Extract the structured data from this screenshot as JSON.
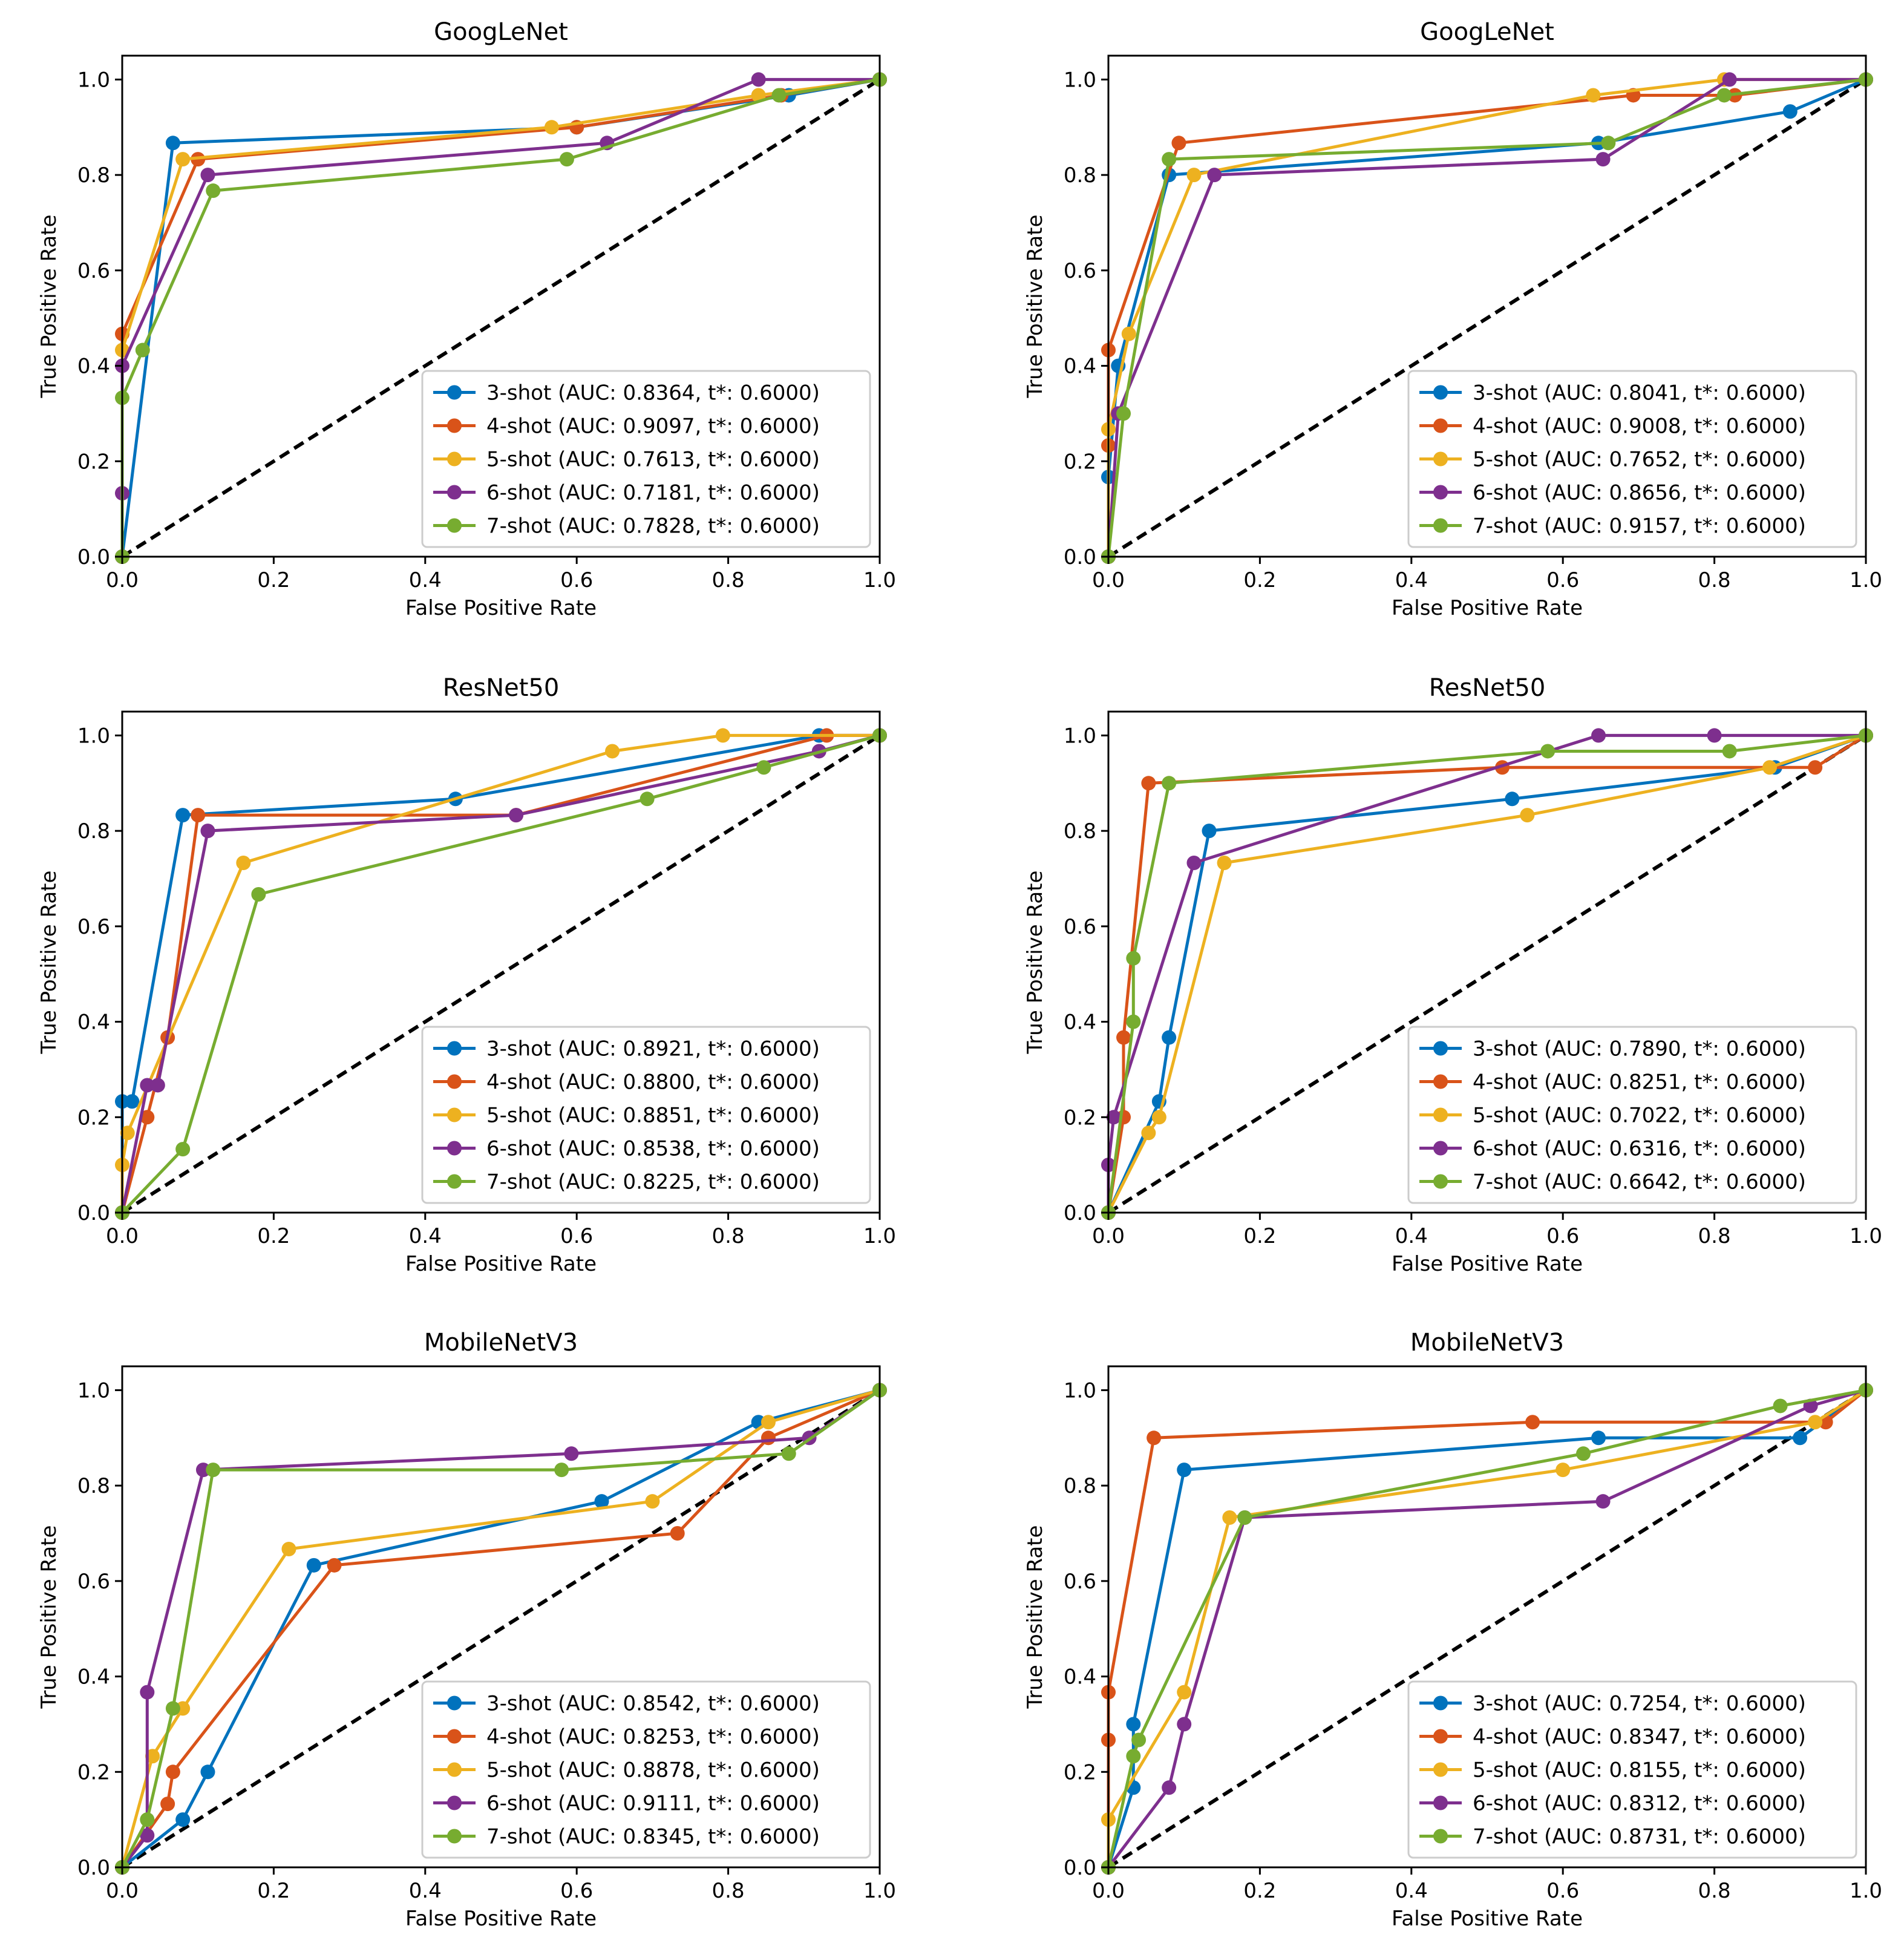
{
  "colors": {
    "3-shot": "#0072BD",
    "4-shot": "#D95319",
    "5-shot": "#EDB120",
    "6-shot": "#7E2F8E",
    "7-shot": "#77AC30",
    "diagonal": "#000000"
  },
  "chart_data": [
    {
      "type": "line",
      "title": "GoogLeNet",
      "xlabel": "False Positive Rate",
      "ylabel": "True Positive Rate",
      "xlim": [
        0,
        1
      ],
      "ylim": [
        0,
        1.05
      ],
      "xticks": [
        "0.0",
        "0.2",
        "0.4",
        "0.6",
        "0.8",
        "1.0"
      ],
      "yticks": [
        "0.0",
        "0.2",
        "0.4",
        "0.6",
        "0.8",
        "1.0"
      ],
      "legend_position": "lower-right",
      "series": [
        {
          "name": "3-shot",
          "label": "3-shot (AUC: 0.8364, t*: 0.6000)",
          "x": [
            0,
            0.067,
            0.6,
            0.88,
            1
          ],
          "y": [
            0,
            0.867,
            0.9,
            0.967,
            1
          ]
        },
        {
          "name": "4-shot",
          "label": "4-shot (AUC: 0.9097, t*: 0.6000)",
          "x": [
            0,
            0,
            0.1,
            0.6,
            0.87,
            1
          ],
          "y": [
            0,
            0.467,
            0.833,
            0.9,
            0.967,
            1
          ]
        },
        {
          "name": "5-shot",
          "label": "5-shot (AUC: 0.7613, t*: 0.6000)",
          "x": [
            0,
            0,
            0.08,
            0.567,
            0.84,
            1
          ],
          "y": [
            0,
            0.433,
            0.833,
            0.9,
            0.967,
            1
          ]
        },
        {
          "name": "6-shot",
          "label": "6-shot (AUC: 0.7181, t*: 0.6000)",
          "x": [
            0,
            0,
            0,
            0.113,
            0.64,
            0.84,
            1
          ],
          "y": [
            0,
            0.133,
            0.4,
            0.8,
            0.867,
            1,
            1
          ]
        },
        {
          "name": "7-shot",
          "label": "7-shot (AUC: 0.7828, t*: 0.6000)",
          "x": [
            0,
            0,
            0.027,
            0.12,
            0.587,
            0.867,
            1
          ],
          "y": [
            0,
            0.333,
            0.433,
            0.767,
            0.833,
            0.967,
            1
          ]
        }
      ]
    },
    {
      "type": "line",
      "title": "GoogLeNet",
      "xlabel": "False Positive Rate",
      "ylabel": "True Positive Rate",
      "xlim": [
        0,
        1
      ],
      "ylim": [
        0,
        1.05
      ],
      "xticks": [
        "0.0",
        "0.2",
        "0.4",
        "0.6",
        "0.8",
        "1.0"
      ],
      "yticks": [
        "0.0",
        "0.2",
        "0.4",
        "0.6",
        "0.8",
        "1.0"
      ],
      "legend_position": "lower-right",
      "series": [
        {
          "name": "3-shot",
          "label": "3-shot (AUC: 0.8041, t*: 0.6000)",
          "x": [
            0,
            0,
            0.013,
            0.08,
            0.647,
            0.9,
            1
          ],
          "y": [
            0,
            0.167,
            0.4,
            0.8,
            0.867,
            0.933,
            1
          ]
        },
        {
          "name": "4-shot",
          "label": "4-shot (AUC: 0.9008, t*: 0.6000)",
          "x": [
            0,
            0,
            0,
            0.093,
            0.693,
            0.827,
            1
          ],
          "y": [
            0,
            0.233,
            0.433,
            0.867,
            0.967,
            0.967,
            1
          ]
        },
        {
          "name": "5-shot",
          "label": "5-shot (AUC: 0.7652, t*: 0.6000)",
          "x": [
            0,
            0,
            0.027,
            0.113,
            0.64,
            0.813,
            1
          ],
          "y": [
            0,
            0.267,
            0.467,
            0.8,
            0.967,
            1,
            1
          ]
        },
        {
          "name": "6-shot",
          "label": "6-shot (AUC: 0.8656, t*: 0.6000)",
          "x": [
            0,
            0.013,
            0.14,
            0.653,
            0.82,
            1
          ],
          "y": [
            0,
            0.3,
            0.8,
            0.833,
            1,
            1
          ]
        },
        {
          "name": "7-shot",
          "label": "7-shot (AUC: 0.9157, t*: 0.6000)",
          "x": [
            0,
            0.02,
            0.08,
            0.66,
            0.813,
            1
          ],
          "y": [
            0,
            0.3,
            0.833,
            0.867,
            0.967,
            1
          ]
        }
      ]
    },
    {
      "type": "line",
      "title": "ResNet50",
      "xlabel": "False Positive Rate",
      "ylabel": "True Positive Rate",
      "xlim": [
        0,
        1
      ],
      "ylim": [
        0,
        1.05
      ],
      "xticks": [
        "0.0",
        "0.2",
        "0.4",
        "0.6",
        "0.8",
        "1.0"
      ],
      "yticks": [
        "0.0",
        "0.2",
        "0.4",
        "0.6",
        "0.8",
        "1.0"
      ],
      "legend_position": "lower-right",
      "series": [
        {
          "name": "3-shot",
          "label": "3-shot (AUC: 0.8921, t*: 0.6000)",
          "x": [
            0,
            0,
            0.013,
            0.08,
            0.44,
            0.92,
            1
          ],
          "y": [
            0,
            0.233,
            0.233,
            0.833,
            0.867,
            1,
            1
          ]
        },
        {
          "name": "4-shot",
          "label": "4-shot (AUC: 0.8800, t*: 0.6000)",
          "x": [
            0,
            0.033,
            0.06,
            0.1,
            0.52,
            0.93,
            1
          ],
          "y": [
            0,
            0.2,
            0.367,
            0.833,
            0.833,
            1,
            1
          ]
        },
        {
          "name": "5-shot",
          "label": "5-shot (AUC: 0.8851, t*: 0.6000)",
          "x": [
            0,
            0,
            0.007,
            0.16,
            0.647,
            0.793,
            1
          ],
          "y": [
            0,
            0.1,
            0.167,
            0.733,
            0.967,
            1,
            1
          ]
        },
        {
          "name": "6-shot",
          "label": "6-shot (AUC: 0.8538, t*: 0.6000)",
          "x": [
            0,
            0.033,
            0.047,
            0.113,
            0.52,
            0.92,
            1
          ],
          "y": [
            0,
            0.267,
            0.267,
            0.8,
            0.833,
            0.967,
            1
          ]
        },
        {
          "name": "7-shot",
          "label": "7-shot (AUC: 0.8225, t*: 0.6000)",
          "x": [
            0,
            0.08,
            0.18,
            0.693,
            0.847,
            1
          ],
          "y": [
            0,
            0.133,
            0.667,
            0.867,
            0.933,
            1
          ]
        }
      ]
    },
    {
      "type": "line",
      "title": "ResNet50",
      "xlabel": "False Positive Rate",
      "ylabel": "True Positive Rate",
      "xlim": [
        0,
        1
      ],
      "ylim": [
        0,
        1.05
      ],
      "xticks": [
        "0.0",
        "0.2",
        "0.4",
        "0.6",
        "0.8",
        "1.0"
      ],
      "yticks": [
        "0.0",
        "0.2",
        "0.4",
        "0.6",
        "0.8",
        "1.0"
      ],
      "legend_position": "lower-right",
      "series": [
        {
          "name": "3-shot",
          "label": "3-shot (AUC: 0.7890, t*: 0.6000)",
          "x": [
            0,
            0.067,
            0.08,
            0.133,
            0.533,
            0.88,
            1
          ],
          "y": [
            0,
            0.233,
            0.367,
            0.8,
            0.867,
            0.933,
            1
          ]
        },
        {
          "name": "4-shot",
          "label": "4-shot (AUC: 0.8251, t*: 0.6000)",
          "x": [
            0,
            0.02,
            0.02,
            0.053,
            0.52,
            0.933,
            1
          ],
          "y": [
            0,
            0.2,
            0.367,
            0.9,
            0.933,
            0.933,
            1
          ]
        },
        {
          "name": "5-shot",
          "label": "5-shot (AUC: 0.7022, t*: 0.6000)",
          "x": [
            0,
            0.053,
            0.067,
            0.153,
            0.553,
            0.873,
            1
          ],
          "y": [
            0,
            0.167,
            0.2,
            0.733,
            0.833,
            0.933,
            1
          ]
        },
        {
          "name": "6-shot",
          "label": "6-shot (AUC: 0.6316, t*: 0.6000)",
          "x": [
            0,
            0,
            0.007,
            0.113,
            0.647,
            0.8,
            1
          ],
          "y": [
            0,
            0.1,
            0.2,
            0.733,
            1,
            1,
            1
          ]
        },
        {
          "name": "7-shot",
          "label": "7-shot (AUC: 0.6642, t*: 0.6000)",
          "x": [
            0,
            0.033,
            0.033,
            0.08,
            0.58,
            0.82,
            1
          ],
          "y": [
            0,
            0.4,
            0.533,
            0.9,
            0.967,
            0.967,
            1
          ]
        }
      ]
    },
    {
      "type": "line",
      "title": "MobileNetV3",
      "xlabel": "False Positive Rate",
      "ylabel": "True Positive Rate",
      "xlim": [
        0,
        1
      ],
      "ylim": [
        0,
        1.05
      ],
      "xticks": [
        "0.0",
        "0.2",
        "0.4",
        "0.6",
        "0.8",
        "1.0"
      ],
      "yticks": [
        "0.0",
        "0.2",
        "0.4",
        "0.6",
        "0.8",
        "1.0"
      ],
      "legend_position": "lower-right",
      "series": [
        {
          "name": "3-shot",
          "label": "3-shot (AUC: 0.8542, t*: 0.6000)",
          "x": [
            0,
            0.08,
            0.113,
            0.253,
            0.633,
            0.84,
            1
          ],
          "y": [
            0,
            0.1,
            0.2,
            0.633,
            0.767,
            0.933,
            1
          ]
        },
        {
          "name": "4-shot",
          "label": "4-shot (AUC: 0.8253, t*: 0.6000)",
          "x": [
            0,
            0.06,
            0.067,
            0.28,
            0.733,
            0.853,
            1
          ],
          "y": [
            0,
            0.133,
            0.2,
            0.633,
            0.7,
            0.9,
            1
          ]
        },
        {
          "name": "5-shot",
          "label": "5-shot (AUC: 0.8878, t*: 0.6000)",
          "x": [
            0,
            0.04,
            0.08,
            0.22,
            0.7,
            0.853,
            1
          ],
          "y": [
            0,
            0.233,
            0.333,
            0.667,
            0.767,
            0.933,
            1
          ]
        },
        {
          "name": "6-shot",
          "label": "6-shot (AUC: 0.9111, t*: 0.6000)",
          "x": [
            0,
            0.033,
            0.033,
            0.107,
            0.593,
            0.907,
            1
          ],
          "y": [
            0,
            0.067,
            0.367,
            0.833,
            0.867,
            0.9,
            1
          ]
        },
        {
          "name": "7-shot",
          "label": "7-shot (AUC: 0.8345, t*: 0.6000)",
          "x": [
            0,
            0.033,
            0.067,
            0.12,
            0.58,
            0.88,
            1
          ],
          "y": [
            0,
            0.1,
            0.333,
            0.833,
            0.833,
            0.867,
            1
          ]
        }
      ]
    },
    {
      "type": "line",
      "title": "MobileNetV3",
      "xlabel": "False Positive Rate",
      "ylabel": "True Positive Rate",
      "xlim": [
        0,
        1
      ],
      "ylim": [
        0,
        1.05
      ],
      "xticks": [
        "0.0",
        "0.2",
        "0.4",
        "0.6",
        "0.8",
        "1.0"
      ],
      "yticks": [
        "0.0",
        "0.2",
        "0.4",
        "0.6",
        "0.8",
        "1.0"
      ],
      "legend_position": "lower-right",
      "series": [
        {
          "name": "3-shot",
          "label": "3-shot (AUC: 0.7254, t*: 0.6000)",
          "x": [
            0,
            0.033,
            0.033,
            0.1,
            0.647,
            0.913,
            1
          ],
          "y": [
            0,
            0.167,
            0.3,
            0.833,
            0.9,
            0.9,
            1
          ]
        },
        {
          "name": "4-shot",
          "label": "4-shot (AUC: 0.8347, t*: 0.6000)",
          "x": [
            0,
            0,
            0,
            0.06,
            0.56,
            0.947,
            1
          ],
          "y": [
            0,
            0.267,
            0.367,
            0.9,
            0.933,
            0.933,
            1
          ]
        },
        {
          "name": "5-shot",
          "label": "5-shot (AUC: 0.8155, t*: 0.6000)",
          "x": [
            0,
            0,
            0.1,
            0.16,
            0.6,
            0.933,
            1
          ],
          "y": [
            0,
            0.1,
            0.367,
            0.733,
            0.833,
            0.933,
            1
          ]
        },
        {
          "name": "6-shot",
          "label": "6-shot (AUC: 0.8312, t*: 0.6000)",
          "x": [
            0,
            0.08,
            0.1,
            0.18,
            0.653,
            0.927,
            1
          ],
          "y": [
            0,
            0.167,
            0.3,
            0.733,
            0.767,
            0.967,
            1
          ]
        },
        {
          "name": "7-shot",
          "label": "7-shot (AUC: 0.8731, t*: 0.6000)",
          "x": [
            0,
            0.033,
            0.04,
            0.18,
            0.627,
            0.887,
            1
          ],
          "y": [
            0,
            0.233,
            0.267,
            0.733,
            0.867,
            0.967,
            1
          ]
        }
      ]
    }
  ]
}
